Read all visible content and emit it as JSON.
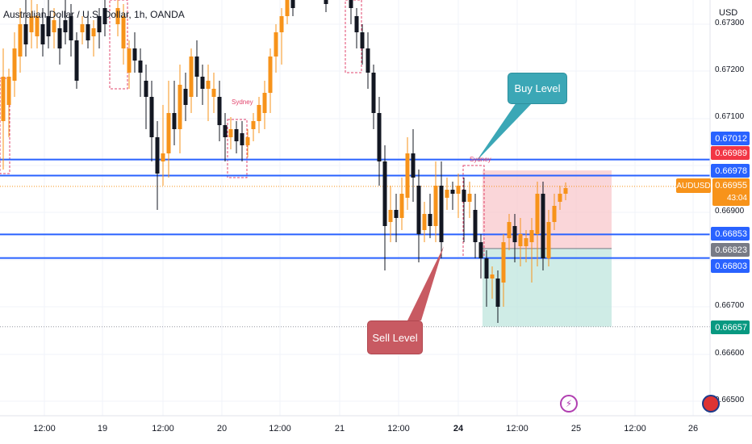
{
  "header": {
    "symbol_title": "Australian Dollar / U.S. Dollar, 1h, OANDA",
    "currency": "USD"
  },
  "annotations": {
    "buy_label": "Buy Level",
    "sell_label": "Sell Level",
    "session_label": "Sydney"
  },
  "price_axis": {
    "ticks": [
      "0.67300",
      "0.67200",
      "0.67100",
      "0.66900",
      "0.66700",
      "0.66600",
      "0.66500"
    ],
    "badges": [
      {
        "value": "0.67012",
        "color": "#2962ff"
      },
      {
        "value": "0.66989",
        "color": "#f23645"
      },
      {
        "value": "0.66978",
        "color": "#2962ff"
      },
      {
        "value": "0.66853",
        "color": "#2962ff"
      },
      {
        "value": "0.66823",
        "color": "#787b86"
      },
      {
        "value": "0.66803",
        "color": "#2962ff"
      },
      {
        "value": "0.66657",
        "color": "#089981"
      }
    ],
    "symbol_tag": "AUDUSD",
    "last_price": "0.66955",
    "countdown": "43:04"
  },
  "time_axis": {
    "labels": [
      {
        "text": "12:00",
        "bold": false
      },
      {
        "text": "19",
        "bold": false
      },
      {
        "text": "12:00",
        "bold": false
      },
      {
        "text": "20",
        "bold": false
      },
      {
        "text": "12:00",
        "bold": false
      },
      {
        "text": "21",
        "bold": false
      },
      {
        "text": "12:00",
        "bold": false
      },
      {
        "text": "24",
        "bold": true
      },
      {
        "text": "12:00",
        "bold": false
      },
      {
        "text": "25",
        "bold": false
      },
      {
        "text": "12:00",
        "bold": false
      },
      {
        "text": "26",
        "bold": false
      }
    ]
  },
  "levels": {
    "horizontal_lines": [
      0.67012,
      0.66978,
      0.66853,
      0.66803
    ],
    "current_price": 0.66955,
    "low_marker": 0.66657
  },
  "colors": {
    "bull": "#f7931a",
    "bear": "#131722",
    "level_line": "#2962ff",
    "session_box": "#e2446c",
    "target_zone": "#f8c8cc",
    "stop_zone": "#bfe6dd",
    "grid": "#f0f3fa"
  },
  "icons": {
    "alert": "lightning-icon",
    "country": "australia-flag-icon"
  }
}
